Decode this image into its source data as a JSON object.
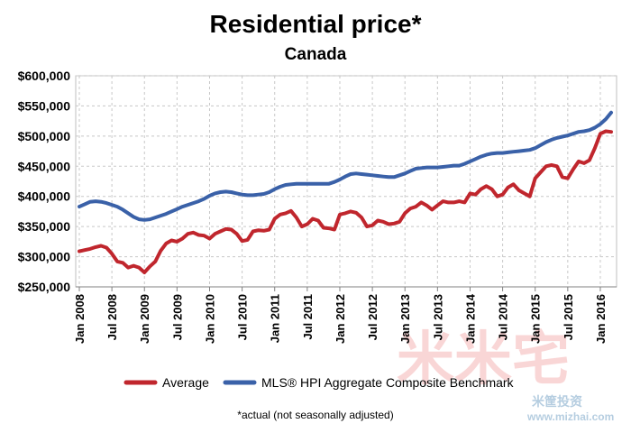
{
  "chart_data": {
    "type": "line",
    "title": "Residential price*",
    "subtitle": "Canada",
    "xlabel": "",
    "ylabel": "",
    "ylim": [
      250000,
      600000
    ],
    "yticks": [
      250000,
      300000,
      350000,
      400000,
      450000,
      500000,
      550000,
      600000
    ],
    "ytick_labels": [
      "$250,000",
      "$300,000",
      "$350,000",
      "$400,000",
      "$450,000",
      "$500,000",
      "$550,000",
      "$600,000"
    ],
    "xtick_labels": [
      "Jan 2008",
      "Jul 2008",
      "Jan 2009",
      "Jul 2009",
      "Jan 2010",
      "Jul 2010",
      "Jan 2011",
      "Jul 2011",
      "Jan 2012",
      "Jul 2012",
      "Jan 2013",
      "Jul 2013",
      "Jan 2014",
      "Jul 2014",
      "Jan 2015",
      "Jul 2015",
      "Jan 2016"
    ],
    "x_start": "Jan 2008",
    "x_frequency": "monthly",
    "grid": true,
    "legend_position": "bottom",
    "footnote": "*actual (not seasonally adjusted)",
    "series": [
      {
        "name": "Average",
        "color": "#c0262d",
        "values": [
          309000,
          311000,
          313000,
          316000,
          318000,
          315000,
          305000,
          292000,
          290000,
          282000,
          285000,
          282000,
          274000,
          284000,
          292000,
          310000,
          322000,
          327000,
          325000,
          330000,
          338000,
          340000,
          336000,
          335000,
          330000,
          338000,
          342000,
          346000,
          345000,
          338000,
          326000,
          328000,
          342000,
          344000,
          343000,
          345000,
          363000,
          370000,
          372000,
          376000,
          365000,
          350000,
          354000,
          363000,
          360000,
          348000,
          347000,
          345000,
          370000,
          372000,
          375000,
          373000,
          365000,
          350000,
          352000,
          360000,
          358000,
          354000,
          355000,
          358000,
          372000,
          380000,
          383000,
          390000,
          385000,
          378000,
          385000,
          392000,
          390000,
          390000,
          392000,
          390000,
          405000,
          403000,
          412000,
          417000,
          412000,
          400000,
          403000,
          415000,
          420000,
          410000,
          405000,
          400000,
          430000,
          440000,
          450000,
          452000,
          450000,
          432000,
          430000,
          445000,
          458000,
          455000,
          460000,
          480000,
          504000,
          508000,
          507000
        ]
      },
      {
        "name": "MLS® HPI Aggregate Composite Benchmark",
        "color": "#3a61a8",
        "values": [
          383000,
          387000,
          391000,
          392000,
          391000,
          389000,
          386000,
          383000,
          378000,
          372000,
          366000,
          362000,
          361000,
          362000,
          365000,
          368000,
          371000,
          375000,
          379000,
          383000,
          386000,
          389000,
          392000,
          396000,
          401000,
          405000,
          407000,
          408000,
          407000,
          405000,
          403000,
          402000,
          402000,
          403000,
          404000,
          407000,
          412000,
          416000,
          419000,
          420000,
          421000,
          421000,
          421000,
          421000,
          421000,
          421000,
          421000,
          424000,
          428000,
          433000,
          437000,
          438000,
          437000,
          436000,
          435000,
          434000,
          433000,
          432000,
          432000,
          435000,
          438000,
          442000,
          446000,
          447000,
          448000,
          448000,
          448000,
          449000,
          450000,
          451000,
          451000,
          454000,
          458000,
          462000,
          466000,
          469000,
          471000,
          472000,
          472000,
          473000,
          474000,
          475000,
          476000,
          477000,
          480000,
          485000,
          490000,
          494000,
          497000,
          499000,
          501000,
          504000,
          507000,
          508000,
          510000,
          514000,
          520000,
          528000,
          539000
        ]
      }
    ]
  },
  "watermark": {
    "big_text": "米米宅",
    "small_text": "米筐投资",
    "url_text": "www.mizhai.com"
  }
}
